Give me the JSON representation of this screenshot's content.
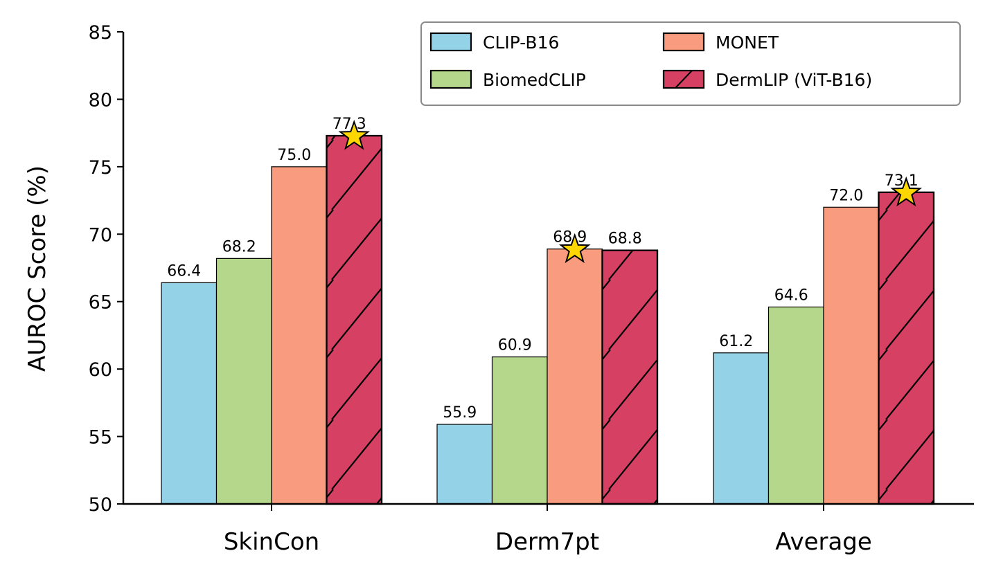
{
  "chart_data": {
    "type": "bar",
    "title": "",
    "xlabel": "",
    "ylabel": "AUROC Score (%)",
    "ylim": [
      50,
      85
    ],
    "yticks": [
      50,
      55,
      60,
      65,
      70,
      75,
      80,
      85
    ],
    "categories": [
      "SkinCon",
      "Derm7pt",
      "Average"
    ],
    "series": [
      {
        "name": "CLIP-B16",
        "values": [
          66.4,
          55.9,
          61.2
        ],
        "labels": [
          "66.4",
          "55.9",
          "61.2"
        ],
        "color": "#94d3e7",
        "hatch": false
      },
      {
        "name": "BiomedCLIP",
        "values": [
          68.2,
          60.9,
          64.6
        ],
        "labels": [
          "68.2",
          "60.9",
          "64.6"
        ],
        "color": "#b4d78c",
        "hatch": false
      },
      {
        "name": "MONET",
        "values": [
          75.0,
          68.9,
          72.0
        ],
        "labels": [
          "75.0",
          "68.9",
          "72.0"
        ],
        "color": "#f89b7e",
        "hatch": false
      },
      {
        "name": "DermLIP (ViT-B16)",
        "values": [
          77.3,
          68.8,
          73.1
        ],
        "labels": [
          "77.3",
          "68.8",
          "73.1"
        ],
        "color": "#d64062",
        "hatch": true
      }
    ],
    "best_markers": [
      {
        "category": "SkinCon",
        "series": "DermLIP (ViT-B16)",
        "value": 77.3,
        "marker": "star"
      },
      {
        "category": "Derm7pt",
        "series": "MONET",
        "value": 68.9,
        "marker": "star"
      },
      {
        "category": "Average",
        "series": "DermLIP (ViT-B16)",
        "value": 73.1,
        "marker": "star"
      }
    ],
    "star_color": "#ffd700",
    "legend": {
      "placement": "top-right",
      "columns": 2
    },
    "grid": false
  }
}
